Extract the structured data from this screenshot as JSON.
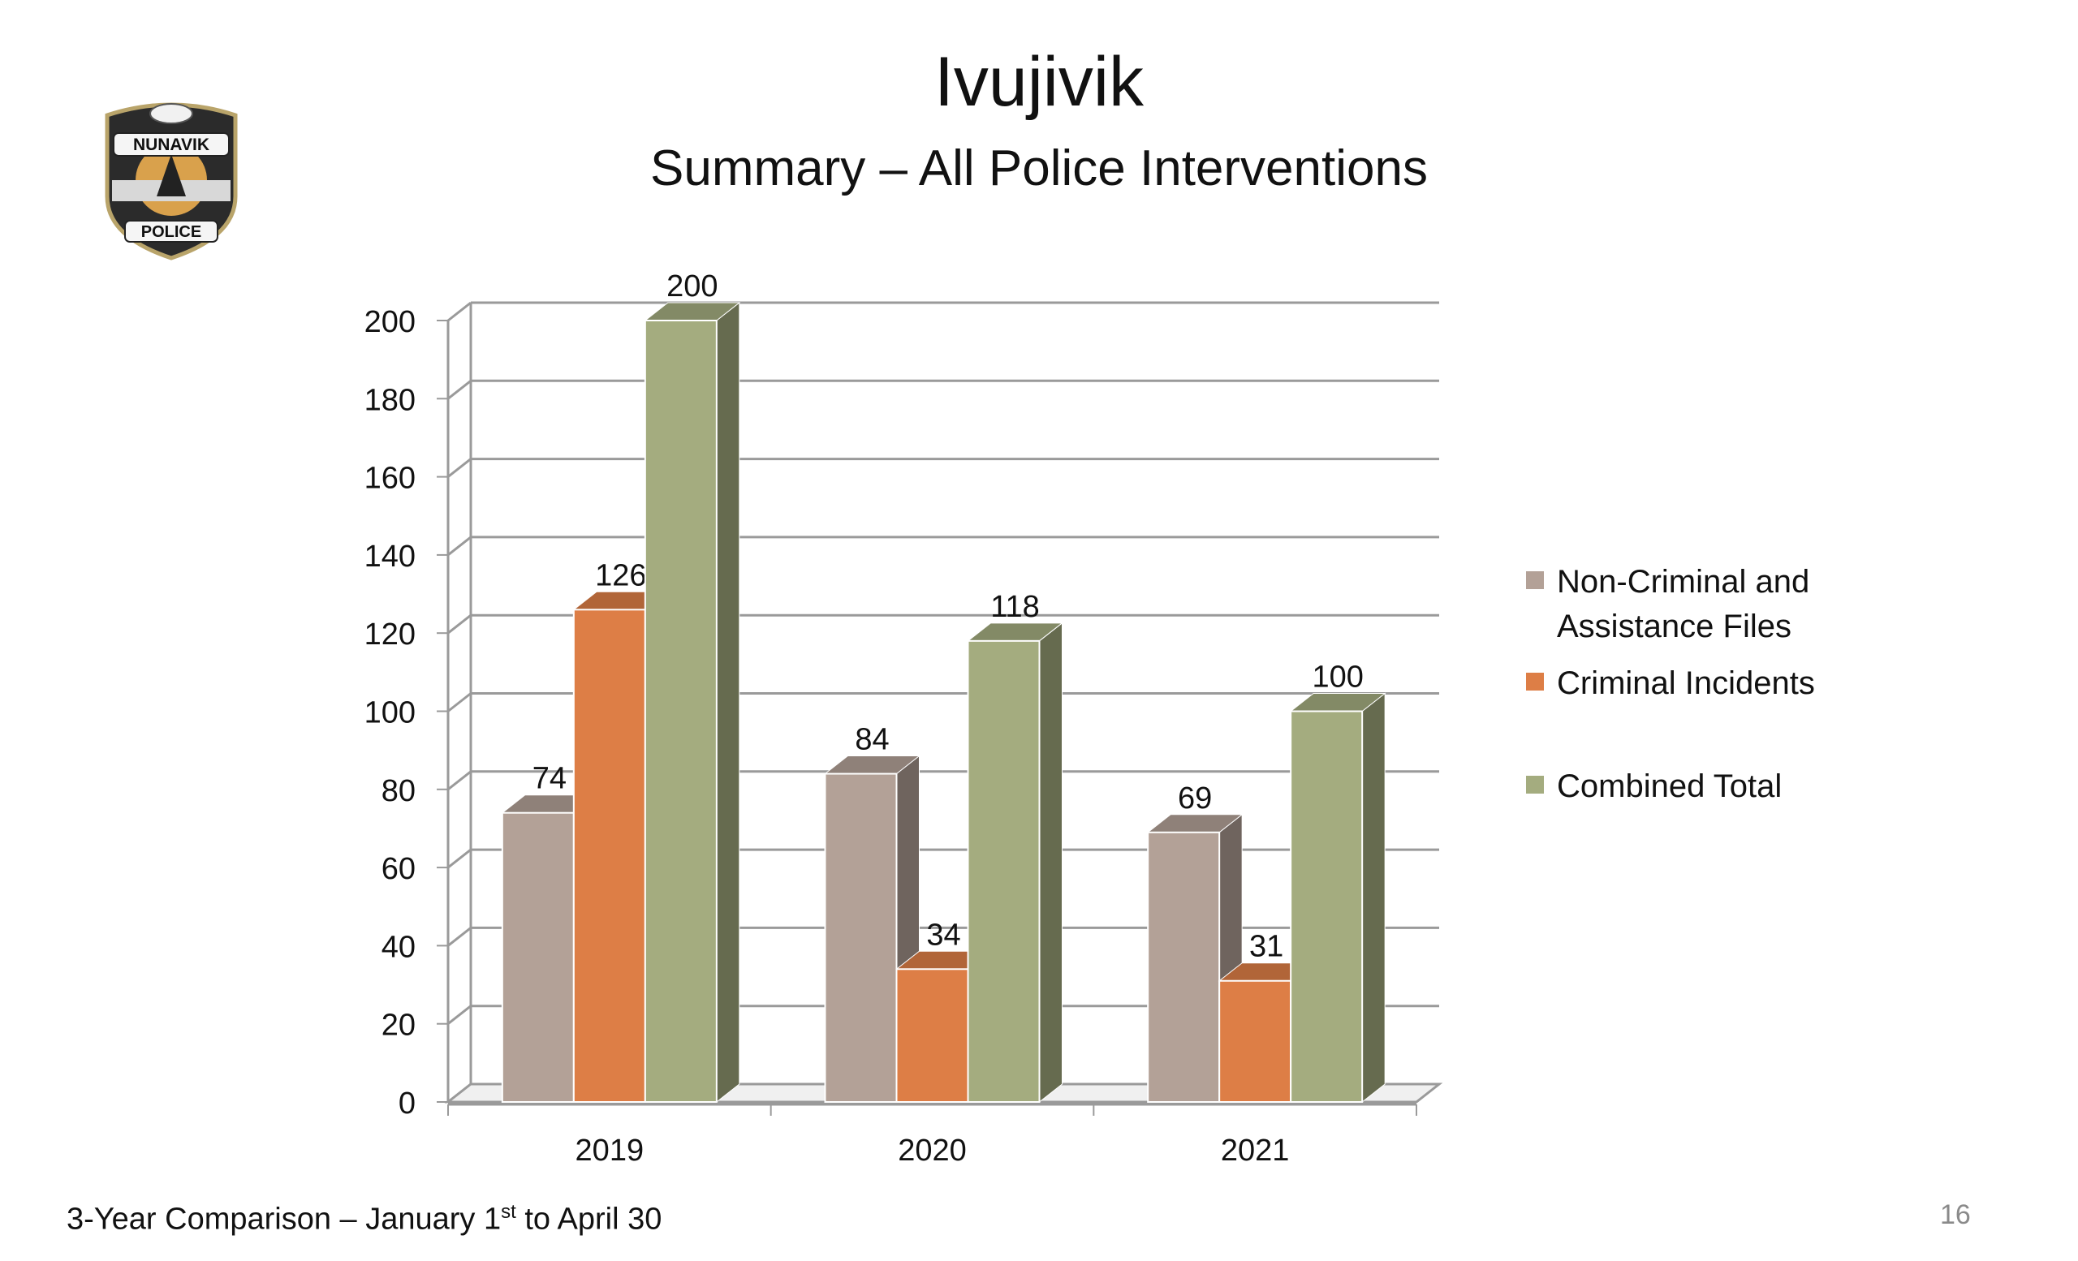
{
  "header": {
    "title": "Ivujivik",
    "subtitle": "Summary – All Police Interventions"
  },
  "footer": {
    "text": "3-Year Comparison – January 1",
    "superscript": "st",
    "text_after": " to April 30",
    "page_number": "16"
  },
  "logo": {
    "top_text": "NUNAVIK",
    "bottom_text": "POLICE"
  },
  "colors": {
    "non_criminal": "#b3a197",
    "criminal": "#dd7e46",
    "combined": "#a4ac7f",
    "grid": "#9a9a9a"
  },
  "chart_data": {
    "type": "bar",
    "categories": [
      "2019",
      "2020",
      "2021"
    ],
    "series": [
      {
        "name": "Non-Criminal and Assistance Files",
        "values": [
          74,
          84,
          69
        ]
      },
      {
        "name": "Criminal Incidents",
        "values": [
          126,
          34,
          31
        ]
      },
      {
        "name": "Combined Total",
        "values": [
          200,
          118,
          100
        ]
      }
    ],
    "yticks": [
      0,
      20,
      40,
      60,
      80,
      100,
      120,
      140,
      160,
      180,
      200
    ],
    "ylim": [
      0,
      200
    ],
    "grid": true,
    "legend": "right",
    "style": "3d-clustered"
  },
  "legend": {
    "items": [
      {
        "line1": "Non-Criminal and",
        "line2": "Assistance Files"
      },
      {
        "line1": "Criminal Incidents",
        "line2": ""
      },
      {
        "line1": "Combined Total",
        "line2": ""
      }
    ]
  }
}
